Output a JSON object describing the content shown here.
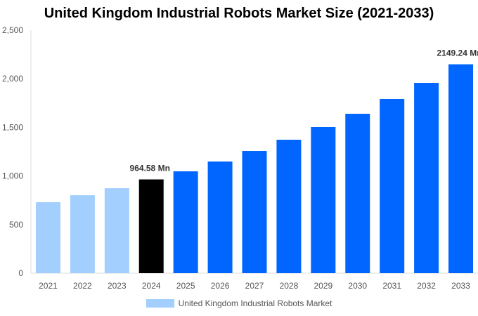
{
  "chart_data": {
    "type": "bar",
    "title": "United Kingdom Industrial Robots Market Size (2021-2033)",
    "categories": [
      "2021",
      "2022",
      "2023",
      "2024",
      "2025",
      "2026",
      "2027",
      "2028",
      "2029",
      "2030",
      "2031",
      "2032",
      "2033"
    ],
    "series": [
      {
        "name": "United Kingdom Industrial Robots Market",
        "values": [
          730,
          802,
          874,
          964.58,
          1048,
          1149,
          1257,
          1373,
          1503,
          1640,
          1792,
          1958,
          2149.24
        ]
      }
    ],
    "data_labels": [
      {
        "index": 3,
        "text": "964.58 Mn"
      },
      {
        "index": 12,
        "text": "2149.24 Mn"
      }
    ],
    "ylim": [
      0,
      2500
    ],
    "yticks": [
      0,
      500,
      1000,
      1500,
      2000,
      2500
    ],
    "ytick_labels": [
      "0",
      "500",
      "1,000",
      "1,500",
      "2,000",
      "2,500"
    ],
    "grid": false,
    "legend_position": "bottom",
    "colors": {
      "historical": "#a3cfff",
      "base_year": "#000000",
      "forecast": "#0066ff"
    }
  }
}
